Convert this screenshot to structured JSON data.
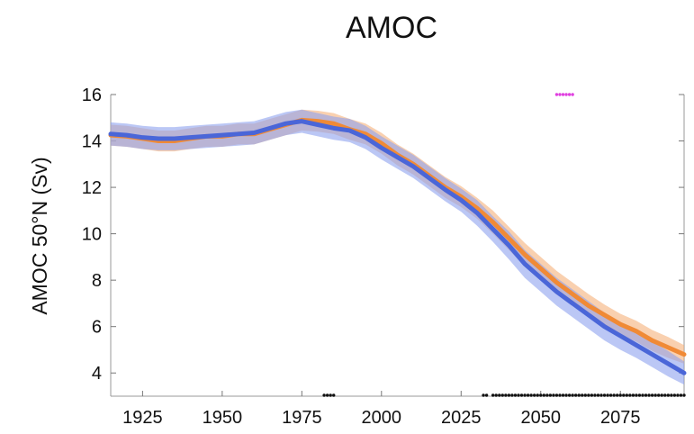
{
  "chart_data": {
    "type": "line",
    "title": "AMOC",
    "xlabel": "",
    "ylabel": "AMOC 50°N (Sv)",
    "xlim": [
      1915,
      2095
    ],
    "ylim": [
      3,
      16
    ],
    "xticks": [
      1925,
      1950,
      1975,
      2000,
      2025,
      2050,
      2075
    ],
    "yticks": [
      4,
      6,
      8,
      10,
      12,
      14,
      16
    ],
    "grid": false,
    "legend": "none",
    "series": [
      {
        "color": "#f08a36",
        "band_color": "#f5b07a",
        "x": [
          1915,
          1920,
          1925,
          1930,
          1935,
          1940,
          1945,
          1950,
          1955,
          1960,
          1965,
          1970,
          1975,
          1980,
          1985,
          1990,
          1995,
          2000,
          2005,
          2010,
          2015,
          2020,
          2025,
          2030,
          2035,
          2040,
          2045,
          2050,
          2055,
          2060,
          2065,
          2070,
          2075,
          2080,
          2085,
          2090,
          2095
        ],
        "values": [
          14.25,
          14.2,
          14.1,
          14.0,
          14.0,
          14.1,
          14.2,
          14.2,
          14.3,
          14.3,
          14.5,
          14.7,
          14.9,
          14.85,
          14.75,
          14.5,
          14.3,
          13.9,
          13.4,
          13.0,
          12.5,
          12.0,
          11.6,
          11.1,
          10.5,
          9.8,
          9.1,
          8.5,
          7.9,
          7.4,
          6.9,
          6.5,
          6.1,
          5.8,
          5.4,
          5.1,
          4.8
        ],
        "band": [
          0.45,
          0.45,
          0.45,
          0.45,
          0.45,
          0.45,
          0.45,
          0.45,
          0.45,
          0.45,
          0.45,
          0.45,
          0.45,
          0.45,
          0.45,
          0.45,
          0.45,
          0.45,
          0.45,
          0.45,
          0.45,
          0.45,
          0.45,
          0.45,
          0.5,
          0.5,
          0.5,
          0.5,
          0.5,
          0.5,
          0.5,
          0.45,
          0.45,
          0.45,
          0.45,
          0.45,
          0.4
        ]
      },
      {
        "color": "#4a66d8",
        "band_color": "#8da2ee",
        "x": [
          1915,
          1920,
          1925,
          1930,
          1935,
          1940,
          1945,
          1950,
          1955,
          1960,
          1965,
          1970,
          1975,
          1980,
          1985,
          1990,
          1995,
          2000,
          2005,
          2010,
          2015,
          2020,
          2025,
          2030,
          2035,
          2040,
          2045,
          2050,
          2055,
          2060,
          2065,
          2070,
          2075,
          2080,
          2085,
          2090,
          2095
        ],
        "values": [
          14.3,
          14.25,
          14.15,
          14.1,
          14.1,
          14.15,
          14.2,
          14.25,
          14.3,
          14.35,
          14.55,
          14.75,
          14.85,
          14.7,
          14.55,
          14.45,
          14.15,
          13.7,
          13.3,
          12.9,
          12.4,
          11.9,
          11.45,
          10.9,
          10.2,
          9.5,
          8.7,
          8.1,
          7.5,
          7.0,
          6.5,
          6.0,
          5.6,
          5.2,
          4.8,
          4.4,
          4.0
        ],
        "band": [
          0.5,
          0.5,
          0.5,
          0.5,
          0.5,
          0.5,
          0.5,
          0.5,
          0.5,
          0.5,
          0.5,
          0.5,
          0.5,
          0.5,
          0.5,
          0.5,
          0.5,
          0.5,
          0.5,
          0.5,
          0.5,
          0.5,
          0.5,
          0.55,
          0.55,
          0.6,
          0.6,
          0.6,
          0.6,
          0.6,
          0.6,
          0.6,
          0.6,
          0.55,
          0.55,
          0.55,
          0.5
        ]
      }
    ],
    "markers": [
      {
        "color": "#e040e0",
        "y": 16,
        "x_start": 2055,
        "x_end": 2060,
        "step": 1
      },
      {
        "color": "#111111",
        "y": 3,
        "x_start": 1982,
        "x_end": 1985,
        "step": 1
      },
      {
        "color": "#111111",
        "y": 3,
        "x_start": 2032,
        "x_end": 2033,
        "step": 1
      },
      {
        "color": "#111111",
        "y": 3,
        "x_start": 2035,
        "x_end": 2095,
        "step": 1
      }
    ]
  }
}
